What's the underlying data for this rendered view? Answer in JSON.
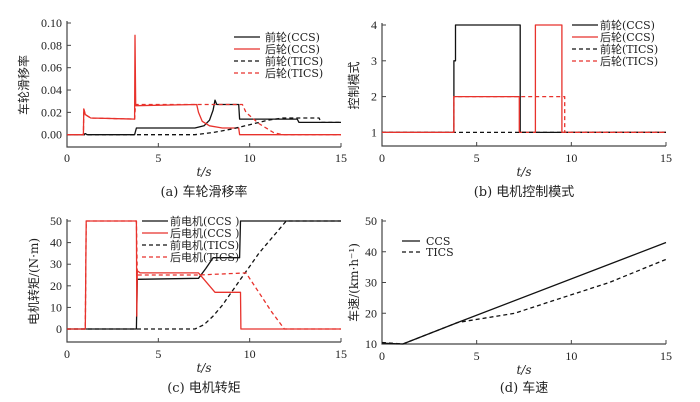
{
  "colors": {
    "black": "#111111",
    "red": "#e8322c",
    "axis": "#444444"
  },
  "chart_data": [
    {
      "id": "a",
      "type": "line",
      "caption": "(a) 车轮滑移率",
      "xlabel": "t/s",
      "ylabel": "车轮滑移率",
      "xlim": [
        0,
        15
      ],
      "ylim": [
        -0.011,
        0.1
      ],
      "xticks": [
        0,
        5,
        10,
        15
      ],
      "xtick_labels": [
        "0",
        "5",
        "10",
        "15"
      ],
      "yticks": [
        0,
        0.02,
        0.04,
        0.06,
        0.08,
        0.1
      ],
      "ytick_labels": [
        "0.00",
        "0.02",
        "0.04",
        "0.06",
        "0.08",
        "0.10"
      ],
      "legend_position": "top-right",
      "series": [
        {
          "name": "前轮(CCS)",
          "color": "black",
          "dash": false,
          "points": [
            [
              0,
              0
            ],
            [
              0.9,
              0
            ],
            [
              1,
              0.001
            ],
            [
              1.1,
              0
            ],
            [
              3.7,
              0
            ],
            [
              3.8,
              0.006
            ],
            [
              7,
              0.006
            ],
            [
              7.5,
              0.008
            ],
            [
              7.8,
              0.013
            ],
            [
              8.0,
              0.022
            ],
            [
              8.1,
              0.031
            ],
            [
              8.2,
              0.027
            ],
            [
              9.4,
              0.027
            ],
            [
              9.45,
              0.014
            ],
            [
              12.6,
              0.014
            ],
            [
              12.7,
              0.011
            ],
            [
              15,
              0.011
            ]
          ]
        },
        {
          "name": "后轮(CCS)",
          "color": "red",
          "dash": false,
          "points": [
            [
              0,
              0
            ],
            [
              0.9,
              0
            ],
            [
              0.92,
              0.023
            ],
            [
              1.0,
              0.018
            ],
            [
              1.3,
              0.015
            ],
            [
              3.7,
              0.014
            ],
            [
              3.72,
              0.089
            ],
            [
              3.76,
              0.026
            ],
            [
              7.1,
              0.027
            ],
            [
              7.2,
              0.02
            ],
            [
              7.4,
              0.012
            ],
            [
              7.8,
              0.008
            ],
            [
              8.5,
              0.006
            ],
            [
              9.4,
              0.006
            ],
            [
              9.45,
              0
            ],
            [
              15,
              0
            ]
          ]
        },
        {
          "name": "前轮(TICS)",
          "color": "black",
          "dash": true,
          "points": [
            [
              0,
              0
            ],
            [
              7,
              0
            ],
            [
              8,
              0.002
            ],
            [
              9,
              0.005
            ],
            [
              10,
              0.009
            ],
            [
              11,
              0.013
            ],
            [
              11.8,
              0.015
            ],
            [
              13.8,
              0.015
            ],
            [
              13.9,
              0.011
            ],
            [
              15,
              0.011
            ]
          ]
        },
        {
          "name": "后轮(TICS)",
          "color": "red",
          "dash": true,
          "points": [
            [
              0,
              0
            ],
            [
              0.9,
              0
            ],
            [
              0.92,
              0.023
            ],
            [
              1,
              0.018
            ],
            [
              1.3,
              0.015
            ],
            [
              3.7,
              0.014
            ],
            [
              3.75,
              0.027
            ],
            [
              9.6,
              0.027
            ],
            [
              9.8,
              0.02
            ],
            [
              10.5,
              0.01
            ],
            [
              11.3,
              0.002
            ],
            [
              11.8,
              0
            ],
            [
              15,
              0
            ]
          ]
        }
      ]
    },
    {
      "id": "b",
      "type": "line",
      "caption": "(b) 电机控制模式",
      "xlabel": "t/s",
      "ylabel": "控制模式",
      "xlim": [
        0,
        15
      ],
      "ylim": [
        0.62,
        4
      ],
      "xticks": [
        0,
        5,
        10,
        15
      ],
      "xtick_labels": [
        "0",
        "5",
        "10",
        "15"
      ],
      "yticks": [
        1,
        2,
        3,
        4
      ],
      "ytick_labels": [
        "1",
        "2",
        "3",
        "4"
      ],
      "legend_position": "top-right",
      "series": [
        {
          "name": "前轮(CCS)",
          "color": "black",
          "dash": false,
          "points": [
            [
              0,
              1
            ],
            [
              3.8,
              1
            ],
            [
              3.8,
              3
            ],
            [
              3.88,
              3
            ],
            [
              3.88,
              4
            ],
            [
              7.3,
              4
            ],
            [
              7.3,
              1
            ],
            [
              15,
              1
            ]
          ]
        },
        {
          "name": "后轮(CCS)",
          "color": "red",
          "dash": false,
          "points": [
            [
              0,
              1
            ],
            [
              3.8,
              1
            ],
            [
              3.8,
              2
            ],
            [
              7.25,
              2
            ],
            [
              7.25,
              1
            ],
            [
              8.1,
              1
            ],
            [
              8.1,
              4
            ],
            [
              9.5,
              4
            ],
            [
              9.5,
              1
            ],
            [
              15,
              1
            ]
          ]
        },
        {
          "name": "前轮(TICS)",
          "color": "black",
          "dash": true,
          "points": [
            [
              0,
              1
            ],
            [
              15,
              1
            ]
          ]
        },
        {
          "name": "后轮(TICS)",
          "color": "red",
          "dash": true,
          "points": [
            [
              0,
              1
            ],
            [
              3.8,
              1
            ],
            [
              3.8,
              2
            ],
            [
              9.65,
              2
            ],
            [
              9.65,
              1
            ],
            [
              15,
              1
            ]
          ]
        }
      ]
    },
    {
      "id": "c",
      "type": "line",
      "caption": "(c) 电机转矩",
      "xlabel": "t/s",
      "ylabel": "电机转矩/(N·m)",
      "xlim": [
        0,
        15
      ],
      "ylim": [
        -6,
        50
      ],
      "xticks": [
        0,
        5,
        10,
        15
      ],
      "xtick_labels": [
        "0",
        "5",
        "10",
        "15"
      ],
      "yticks": [
        0,
        10,
        20,
        30,
        40,
        50
      ],
      "ytick_labels": [
        "0",
        "10",
        "20",
        "30",
        "40",
        "50"
      ],
      "legend_position": "top-center",
      "series": [
        {
          "name": "前电机(CCS )",
          "color": "black",
          "dash": false,
          "points": [
            [
              0,
              0
            ],
            [
              3.8,
              0
            ],
            [
              3.85,
              23
            ],
            [
              7.2,
              23.5
            ],
            [
              7.6,
              28
            ],
            [
              8,
              33
            ],
            [
              9.45,
              33
            ],
            [
              9.5,
              50
            ],
            [
              15,
              50
            ]
          ]
        },
        {
          "name": "后电机(CCS )",
          "color": "red",
          "dash": false,
          "points": [
            [
              0,
              0
            ],
            [
              1,
              0
            ],
            [
              1.05,
              50
            ],
            [
              3.8,
              50
            ],
            [
              3.82,
              6
            ],
            [
              3.85,
              27
            ],
            [
              4,
              26
            ],
            [
              7.2,
              26
            ],
            [
              8.1,
              17
            ],
            [
              9.5,
              17
            ],
            [
              9.52,
              0
            ],
            [
              15,
              0
            ]
          ]
        },
        {
          "name": "前电机(TICS)",
          "color": "black",
          "dash": true,
          "points": [
            [
              0,
              0
            ],
            [
              7,
              0
            ],
            [
              7.5,
              2
            ],
            [
              8,
              6
            ],
            [
              8.5,
              11
            ],
            [
              9,
              17
            ],
            [
              9.5,
              23
            ],
            [
              10,
              29
            ],
            [
              10.5,
              35
            ],
            [
              11,
              40
            ],
            [
              11.5,
              45
            ],
            [
              12,
              50
            ],
            [
              15,
              50
            ]
          ]
        },
        {
          "name": "后电机(TICS)",
          "color": "red",
          "dash": true,
          "points": [
            [
              0,
              0
            ],
            [
              1,
              0
            ],
            [
              1.05,
              50
            ],
            [
              3.8,
              50
            ],
            [
              3.85,
              25
            ],
            [
              7.2,
              25
            ],
            [
              9.8,
              26
            ],
            [
              10.5,
              17
            ],
            [
              11.2,
              8
            ],
            [
              11.9,
              0
            ],
            [
              15,
              0
            ]
          ]
        }
      ]
    },
    {
      "id": "d",
      "type": "line",
      "caption": "(d) 车速",
      "xlabel": "t/s",
      "ylabel": "车速/(km·h⁻¹)",
      "xlim": [
        0,
        15
      ],
      "ylim": [
        10,
        50
      ],
      "xticks": [
        0,
        5,
        10,
        15
      ],
      "xtick_labels": [
        "0",
        "5",
        "10",
        "15"
      ],
      "yticks": [
        10,
        20,
        30,
        40,
        50
      ],
      "ytick_labels": [
        "10",
        "20",
        "30",
        "40",
        "50"
      ],
      "legend_position": "top-left",
      "series": [
        {
          "name": "CCS",
          "color": "black",
          "dash": false,
          "points": [
            [
              0,
              10.3
            ],
            [
              1.1,
              10
            ],
            [
              4,
              17
            ],
            [
              15,
              43
            ]
          ]
        },
        {
          "name": "TICS",
          "color": "black",
          "dash": true,
          "points": [
            [
              0,
              10.5
            ],
            [
              1.1,
              10
            ],
            [
              4,
              17
            ],
            [
              5,
              18
            ],
            [
              7,
              20
            ],
            [
              8,
              22
            ],
            [
              9,
              24
            ],
            [
              10,
              26
            ],
            [
              12,
              30
            ],
            [
              15,
              37.5
            ]
          ]
        }
      ]
    }
  ]
}
